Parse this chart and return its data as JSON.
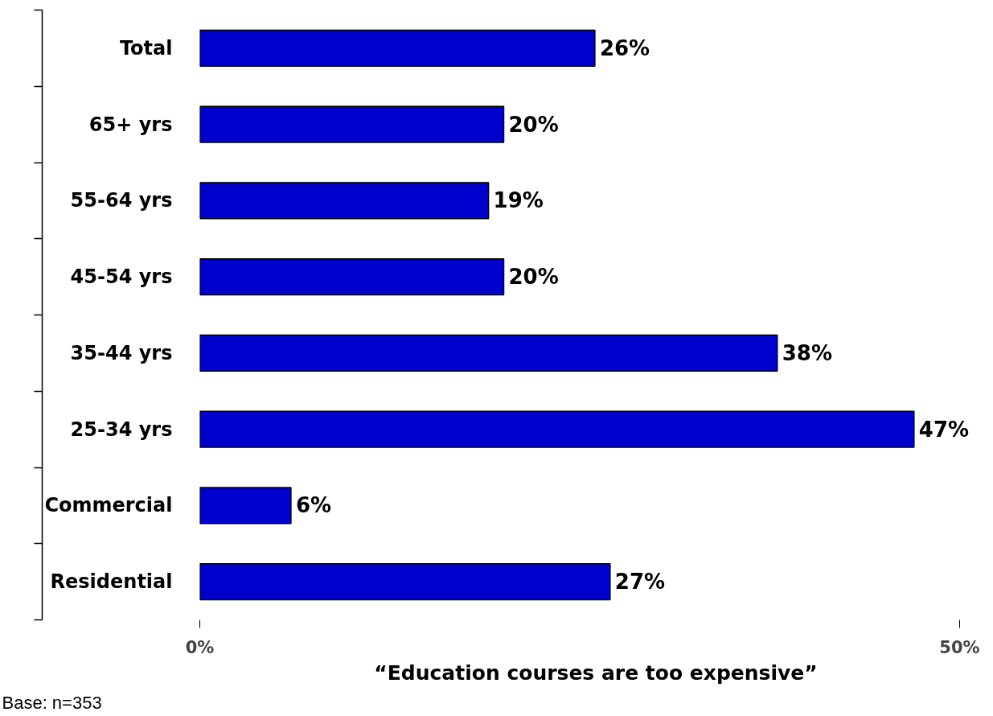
{
  "chart_data": {
    "type": "bar",
    "orientation": "horizontal",
    "categories": [
      "Total",
      "65+ yrs",
      "55-64 yrs",
      "45-54 yrs",
      "35-44 yrs",
      "25-34 yrs",
      "Commercial",
      "Residential"
    ],
    "values": [
      26,
      20,
      19,
      20,
      38,
      47,
      6,
      27
    ],
    "value_labels": [
      "26%",
      "20%",
      "19%",
      "20%",
      "38%",
      "47%",
      "6%",
      "27%"
    ],
    "color": "#0000cc",
    "xlim": [
      0,
      50
    ],
    "xticks": [
      {
        "value": 0,
        "label": "0%"
      },
      {
        "value": 50,
        "label": "50%"
      }
    ],
    "xlabel": "“Education courses are too expensive”",
    "annotations": [
      "Base: n=353"
    ],
    "grid": false
  }
}
